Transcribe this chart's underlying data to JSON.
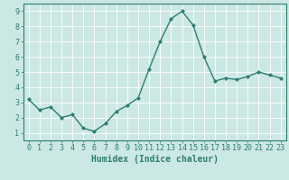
{
  "x": [
    0,
    1,
    2,
    3,
    4,
    5,
    6,
    7,
    8,
    9,
    10,
    11,
    12,
    13,
    14,
    15,
    16,
    17,
    18,
    19,
    20,
    21,
    22,
    23
  ],
  "y": [
    3.2,
    2.5,
    2.7,
    2.0,
    2.2,
    1.3,
    1.1,
    1.6,
    2.4,
    2.8,
    3.3,
    5.2,
    7.0,
    8.5,
    9.0,
    8.1,
    6.0,
    4.4,
    4.6,
    4.5,
    4.7,
    5.0,
    4.8,
    4.6
  ],
  "line_color": "#2d7d72",
  "marker": "D",
  "marker_size": 2.0,
  "linewidth": 1.0,
  "xlabel": "Humidex (Indice chaleur)",
  "xlim": [
    -0.5,
    23.5
  ],
  "ylim": [
    0.5,
    9.5
  ],
  "xtick_vals": [
    0,
    1,
    2,
    3,
    4,
    5,
    6,
    7,
    8,
    9,
    10,
    11,
    12,
    13,
    14,
    15,
    16,
    17,
    18,
    19,
    20,
    21,
    22,
    23
  ],
  "xtick_labels": [
    "0",
    "1",
    "2",
    "3",
    "4",
    "5",
    "6",
    "7",
    "8",
    "9",
    "10",
    "11",
    "12",
    "13",
    "14",
    "15",
    "16",
    "17",
    "18",
    "19",
    "20",
    "21",
    "22",
    "23"
  ],
  "ytick_vals": [
    1,
    2,
    3,
    4,
    5,
    6,
    7,
    8,
    9
  ],
  "ytick_labels": [
    "1",
    "2",
    "3",
    "4",
    "5",
    "6",
    "7",
    "8",
    "9"
  ],
  "background_color": "#cce8e4",
  "grid_color": "#ffffff",
  "tick_color": "#2d7d72",
  "label_color": "#2d7d72",
  "xlabel_fontsize": 7,
  "tick_fontsize": 6,
  "font_family": "monospace"
}
